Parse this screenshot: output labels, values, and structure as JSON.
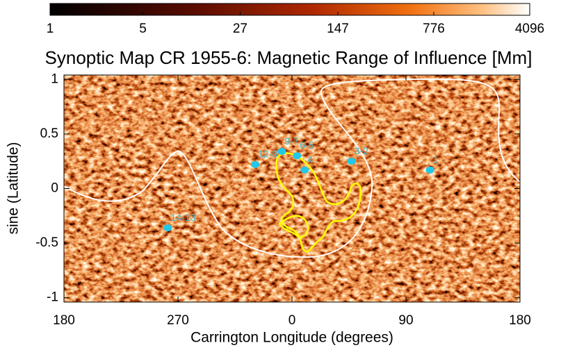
{
  "chart_data": {
    "type": "map",
    "title": "Synoptic Map CR 1955-6: Magnetic Range of Influence [Mm]",
    "xlabel": "Carrington Longitude (degrees)",
    "ylabel": "sine (Latitude)",
    "xlim": [
      180,
      540
    ],
    "xticks": [
      {
        "value": 180,
        "label": "180"
      },
      {
        "value": 270,
        "label": "270"
      },
      {
        "value": 360,
        "label": "0"
      },
      {
        "value": 450,
        "label": "90"
      },
      {
        "value": 540,
        "label": "180"
      }
    ],
    "ylim": [
      -1.04,
      1.04
    ],
    "yticks": [
      1,
      0.5,
      0,
      -0.5,
      -1
    ],
    "colorbar": {
      "lim": [
        1,
        4096
      ],
      "ticks": [
        1,
        5,
        27,
        147,
        776,
        4096
      ],
      "log": true
    },
    "annotations": [
      {
        "text": "12-8",
        "x": 331,
        "y": 0.22
      },
      {
        "text": "9-7",
        "x": 352,
        "y": 0.34
      },
      {
        "text": "6-5",
        "x": 364,
        "y": 0.3
      },
      {
        "text": "4",
        "x": 370,
        "y": 0.17
      },
      {
        "text": "3-2",
        "x": 407,
        "y": 0.25
      },
      {
        "text": "1",
        "x": 469,
        "y": 0.17
      },
      {
        "text": "14-13",
        "x": 262,
        "y": -0.36
      }
    ]
  }
}
